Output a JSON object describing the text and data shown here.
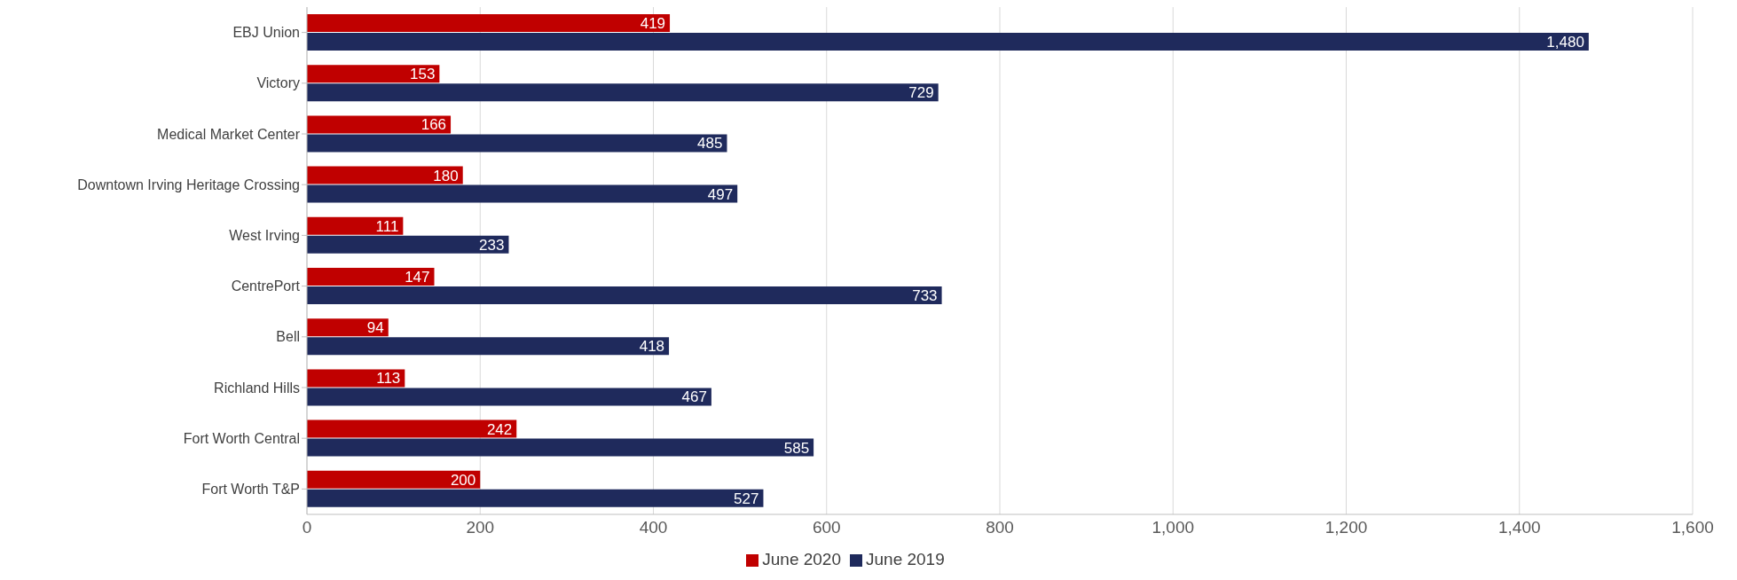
{
  "chart_data": {
    "type": "bar",
    "orientation": "horizontal",
    "categories": [
      "EBJ Union",
      "Victory",
      "Medical Market Center",
      "Downtown Irving Heritage Crossing",
      "West Irving",
      "CentrePort",
      "Bell",
      "Richland Hills",
      "Fort Worth Central",
      "Fort Worth T&P"
    ],
    "series": [
      {
        "name": "June 2020",
        "color": "#c00000",
        "values": [
          419,
          153,
          166,
          180,
          111,
          147,
          94,
          113,
          242,
          200
        ],
        "value_labels": [
          "419",
          "153",
          "166",
          "180",
          "111",
          "147",
          "94",
          "113",
          "242",
          "200"
        ]
      },
      {
        "name": "June 2019",
        "color": "#1f2a5c",
        "values": [
          1480,
          729,
          485,
          497,
          233,
          733,
          418,
          467,
          585,
          527
        ],
        "value_labels": [
          "1,480",
          "729",
          "485",
          "497",
          "233",
          "733",
          "418",
          "467",
          "585",
          "527"
        ]
      }
    ],
    "xlim": [
      0,
      1600
    ],
    "xticks": [
      0,
      200,
      400,
      600,
      800,
      {
        "value": 1000,
        "label": "1,000"
      },
      {
        "value": 1200,
        "label": "1,200"
      },
      {
        "value": 1400,
        "label": "1,400"
      },
      {
        "value": 1600,
        "label": "1,600"
      }
    ],
    "grid": "x",
    "legend": "bottom"
  }
}
